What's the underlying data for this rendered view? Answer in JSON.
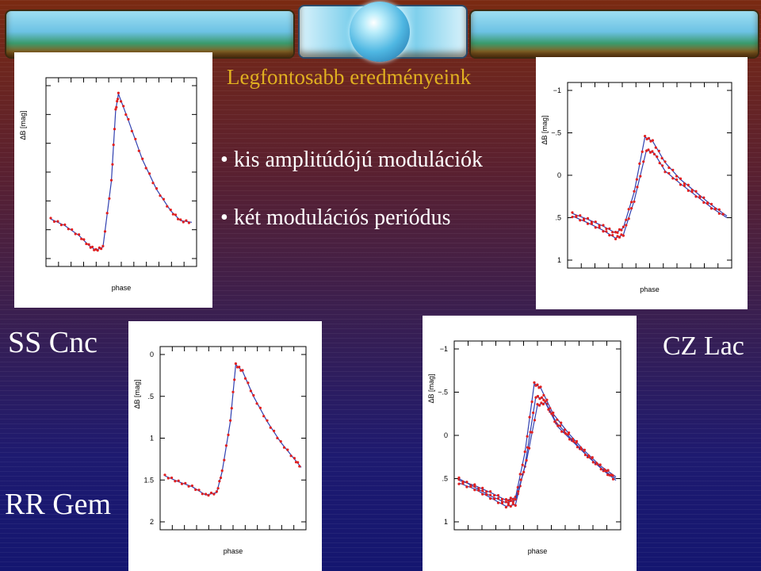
{
  "slide": {
    "title": "Legfontosabb eredményeink",
    "bullets": [
      "kis amplitúdójú modulációk",
      "két modulációs periódus"
    ],
    "labels": {
      "ss_cnc": "SS Cnc",
      "cz_lac": "CZ Lac",
      "rr_gem": "RR Gem"
    },
    "colors": {
      "title": "#e0b020",
      "model_line": "#3040b0",
      "observed_points": "#e02020"
    }
  },
  "bullet_glyph": "•",
  "chart_data": [
    {
      "type": "line",
      "star": "SS Cnc",
      "xlabel": "phase",
      "ylabel": "ΔB [mag]",
      "y_tick_labels": [],
      "series": [
        {
          "x": [
            0.0,
            0.1,
            0.2,
            0.27,
            0.32,
            0.37,
            0.43,
            0.46,
            0.48,
            0.55,
            0.65,
            0.75,
            0.85,
            0.92,
            1.0
          ],
          "y": [
            0.78,
            0.82,
            0.88,
            0.94,
            0.97,
            0.95,
            0.55,
            0.12,
            0.02,
            0.18,
            0.42,
            0.6,
            0.73,
            0.79,
            0.8
          ]
        }
      ]
    },
    {
      "type": "line",
      "star": "CZ Lac",
      "xlabel": "phase",
      "ylabel": "ΔB [mag]",
      "y_tick_labels": [
        "−1",
        "−.5",
        "0",
        ".5",
        "1"
      ],
      "ylim": [
        -1,
        1
      ],
      "series": [
        {
          "x": [
            0.0,
            0.1,
            0.2,
            0.28,
            0.33,
            0.4,
            0.47,
            0.52,
            0.6,
            0.7,
            0.8,
            0.9,
            1.0
          ],
          "y": [
            0.45,
            0.52,
            0.6,
            0.68,
            0.62,
            0.2,
            -0.45,
            -0.4,
            -0.15,
            0.05,
            0.2,
            0.35,
            0.48
          ]
        },
        {
          "x": [
            0.0,
            0.1,
            0.2,
            0.28,
            0.33,
            0.4,
            0.48,
            0.53,
            0.6,
            0.7,
            0.8,
            0.9,
            1.0
          ],
          "y": [
            0.48,
            0.56,
            0.65,
            0.74,
            0.7,
            0.3,
            -0.3,
            -0.26,
            -0.05,
            0.1,
            0.24,
            0.38,
            0.5
          ]
        }
      ]
    },
    {
      "type": "line",
      "star": "RR Gem",
      "xlabel": "phase",
      "ylabel": "ΔB [mag]",
      "y_tick_labels": [
        "0",
        ".5",
        "1",
        "1.5",
        "2"
      ],
      "ylim": [
        0,
        2
      ],
      "series": [
        {
          "x": [
            0.0,
            0.1,
            0.2,
            0.3,
            0.38,
            0.42,
            0.48,
            0.52,
            0.57,
            0.65,
            0.75,
            0.85,
            0.95,
            1.0
          ],
          "y": [
            1.45,
            1.52,
            1.58,
            1.68,
            1.65,
            1.4,
            0.8,
            0.12,
            0.2,
            0.5,
            0.8,
            1.05,
            1.25,
            1.35
          ]
        }
      ]
    },
    {
      "type": "line",
      "star": "",
      "xlabel": "phase",
      "ylabel": "ΔB [mag]",
      "y_tick_labels": [
        "−1",
        "−.5",
        "0",
        ".5",
        "1"
      ],
      "ylim": [
        -1,
        1
      ],
      "series": [
        {
          "x": [
            0.0,
            0.1,
            0.2,
            0.3,
            0.36,
            0.42,
            0.48,
            0.52,
            0.6,
            0.7,
            0.8,
            0.9,
            1.0
          ],
          "y": [
            0.52,
            0.58,
            0.66,
            0.75,
            0.72,
            0.2,
            -0.6,
            -0.55,
            -0.25,
            -0.02,
            0.18,
            0.35,
            0.48
          ]
        },
        {
          "x": [
            0.0,
            0.1,
            0.2,
            0.3,
            0.36,
            0.42,
            0.49,
            0.54,
            0.62,
            0.72,
            0.82,
            0.92,
            1.0
          ],
          "y": [
            0.55,
            0.62,
            0.72,
            0.82,
            0.8,
            0.35,
            -0.45,
            -0.42,
            -0.15,
            0.05,
            0.24,
            0.4,
            0.5
          ]
        },
        {
          "x": [
            0.0,
            0.1,
            0.2,
            0.3,
            0.36,
            0.43,
            0.5,
            0.55,
            0.63,
            0.73,
            0.83,
            0.93,
            1.0
          ],
          "y": [
            0.5,
            0.6,
            0.7,
            0.78,
            0.75,
            0.3,
            -0.35,
            -0.38,
            -0.1,
            0.08,
            0.26,
            0.42,
            0.52
          ]
        }
      ]
    }
  ]
}
